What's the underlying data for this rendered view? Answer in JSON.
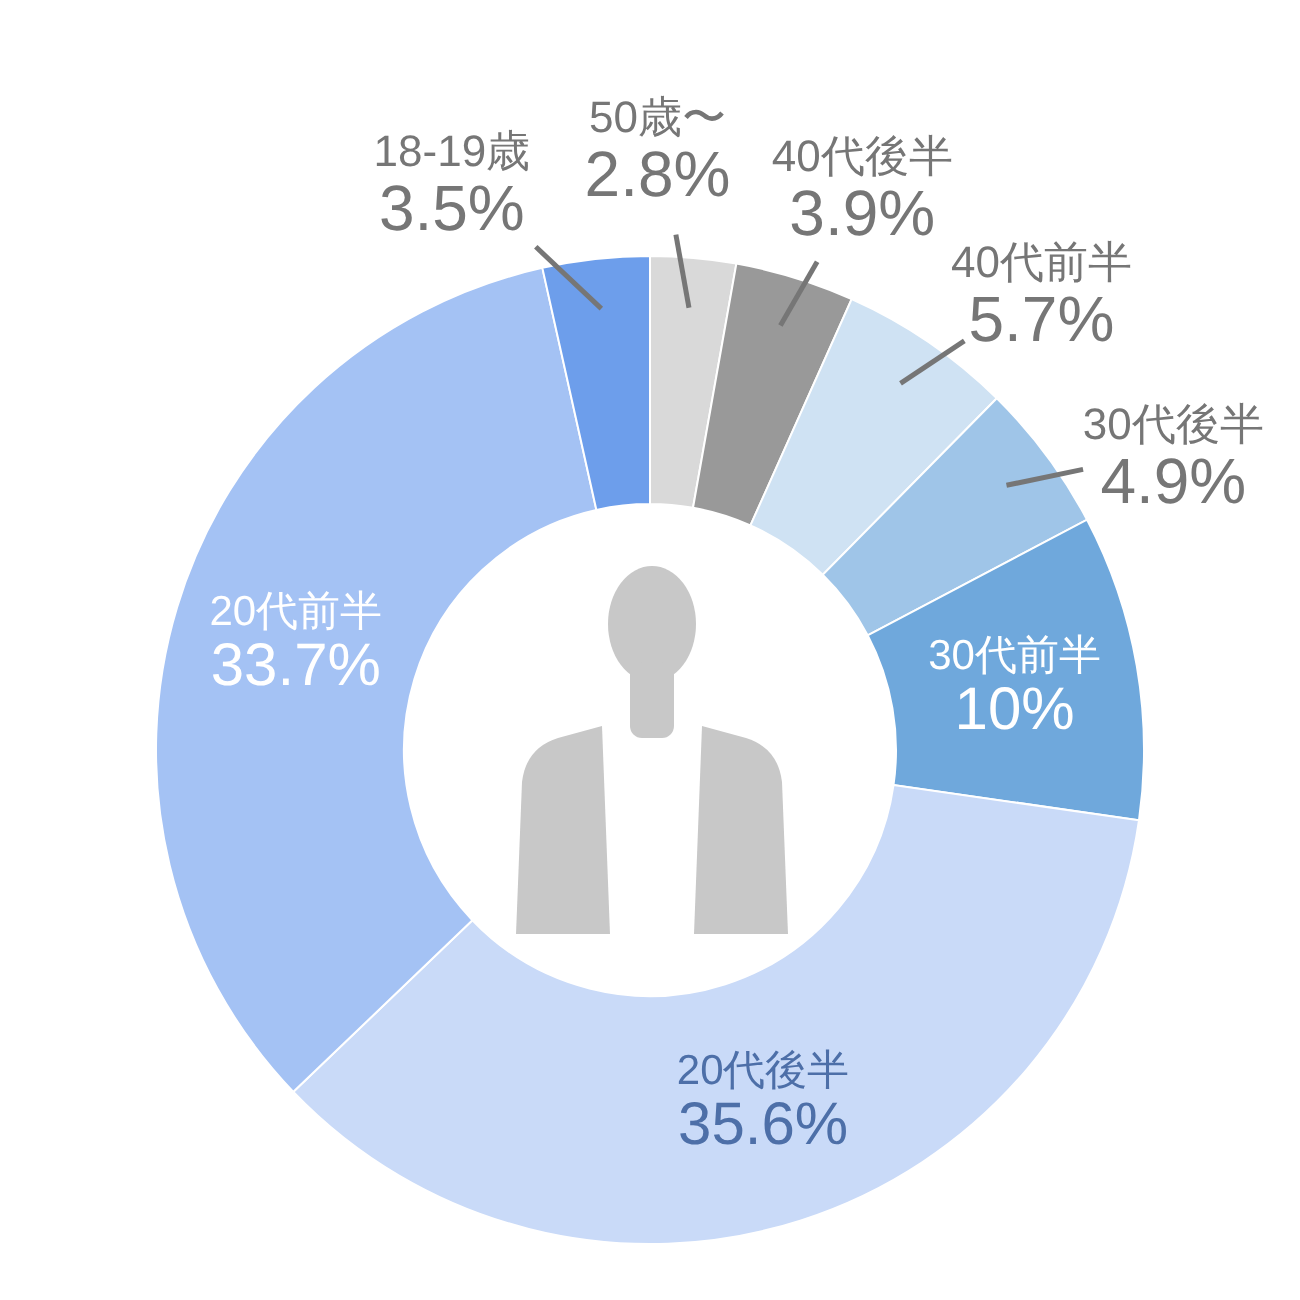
{
  "chart_data": {
    "type": "donut",
    "categories": [
      "50歳〜",
      "40代後半",
      "40代前半",
      "30代後半",
      "30代前半",
      "20代後半",
      "20代前半",
      "18-19歳"
    ],
    "values": [
      2.8,
      3.9,
      5.7,
      4.9,
      10,
      35.6,
      33.7,
      3.5
    ],
    "colors": [
      "#d9d9d9",
      "#999999",
      "#cfe2f3",
      "#9fc5e8",
      "#6fa8dc",
      "#c9daf8",
      "#a4c2f4",
      "#6d9eeb"
    ],
    "value_labels": [
      "2.8%",
      "3.9%",
      "5.7%",
      "4.9%",
      "10%",
      "35.6%",
      "33.7%",
      "3.5%"
    ]
  }
}
